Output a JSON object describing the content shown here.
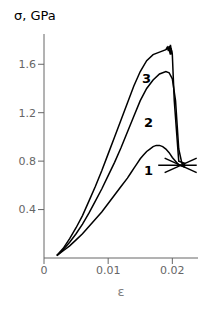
{
  "chart_data": {
    "type": "line",
    "title": "σ, GPa",
    "x_label": "ε",
    "xlim": [
      0,
      0.024
    ],
    "ylim": [
      0,
      1.85
    ],
    "xticks": [
      0,
      0.01,
      0.02
    ],
    "yticks": [
      0.4,
      0.8,
      1.2,
      1.6
    ],
    "grid": false,
    "series": [
      {
        "color": "#000000",
        "x": [
          0.002,
          0.003,
          0.004,
          0.005,
          0.006,
          0.007,
          0.008,
          0.009,
          0.01,
          0.011,
          0.012,
          0.013,
          0.0135,
          0.014,
          0.0145,
          0.015,
          0.0155,
          0.016,
          0.0165,
          0.017,
          0.0175,
          0.018,
          0.0185,
          0.019,
          0.0195,
          0.02,
          0.0205,
          0.021,
          0.0215,
          0.022
        ],
        "values": [
          0.02,
          0.06,
          0.1,
          0.15,
          0.2,
          0.26,
          0.32,
          0.38,
          0.45,
          0.52,
          0.59,
          0.66,
          0.7,
          0.74,
          0.78,
          0.82,
          0.85,
          0.88,
          0.9,
          0.92,
          0.93,
          0.93,
          0.92,
          0.9,
          0.87,
          0.83,
          0.8,
          0.77,
          0.76,
          0.75
        ]
      },
      {
        "color": "#000000",
        "x": [
          0.002,
          0.003,
          0.004,
          0.005,
          0.006,
          0.007,
          0.008,
          0.009,
          0.01,
          0.011,
          0.012,
          0.013,
          0.014,
          0.015,
          0.016,
          0.017,
          0.018,
          0.019,
          0.0195,
          0.02,
          0.0205,
          0.021,
          0.0215,
          0.022
        ],
        "values": [
          0.02,
          0.07,
          0.13,
          0.2,
          0.28,
          0.37,
          0.47,
          0.57,
          0.68,
          0.79,
          0.91,
          1.04,
          1.17,
          1.3,
          1.4,
          1.47,
          1.52,
          1.54,
          1.53,
          1.48,
          1.3,
          0.9,
          0.78,
          0.77
        ]
      },
      {
        "color": "#000000",
        "x": [
          0.002,
          0.003,
          0.004,
          0.005,
          0.006,
          0.007,
          0.008,
          0.009,
          0.01,
          0.011,
          0.012,
          0.013,
          0.014,
          0.015,
          0.016,
          0.017,
          0.018,
          0.019,
          0.0193,
          0.0195,
          0.0197,
          0.0198,
          0.0199,
          0.02,
          0.0201,
          0.0203,
          0.021,
          0.022
        ],
        "values": [
          0.02,
          0.08,
          0.16,
          0.25,
          0.35,
          0.47,
          0.59,
          0.72,
          0.86,
          1.0,
          1.14,
          1.28,
          1.42,
          1.54,
          1.63,
          1.68,
          1.7,
          1.72,
          1.74,
          1.72,
          1.68,
          1.73,
          1.7,
          1.68,
          1.55,
          1.3,
          0.8,
          0.78
        ]
      },
      {
        "color": "#000000",
        "x": [
          0.019,
          0.0192,
          0.0194,
          0.0195,
          0.0196,
          0.0197,
          0.0198,
          0.0199,
          0.02
        ],
        "values": [
          1.72,
          1.74,
          1.71,
          1.75,
          1.72,
          1.76,
          1.73,
          1.71,
          1.68
        ]
      },
      {
        "color": "#000000",
        "x": [
          0.0178,
          0.0238
        ],
        "values": [
          0.765,
          0.765
        ]
      },
      {
        "color": "#000000",
        "x": [
          0.0188,
          0.0238
        ],
        "values": [
          0.825,
          0.705
        ]
      },
      {
        "color": "#000000",
        "x": [
          0.0188,
          0.0238
        ],
        "values": [
          0.705,
          0.825
        ]
      }
    ],
    "annotations": [
      {
        "text": "1",
        "x": 0.0148,
        "y": 0.72
      },
      {
        "text": "2",
        "x": 0.0148,
        "y": 1.12
      },
      {
        "text": "3",
        "x": 0.0145,
        "y": 1.48
      }
    ]
  }
}
